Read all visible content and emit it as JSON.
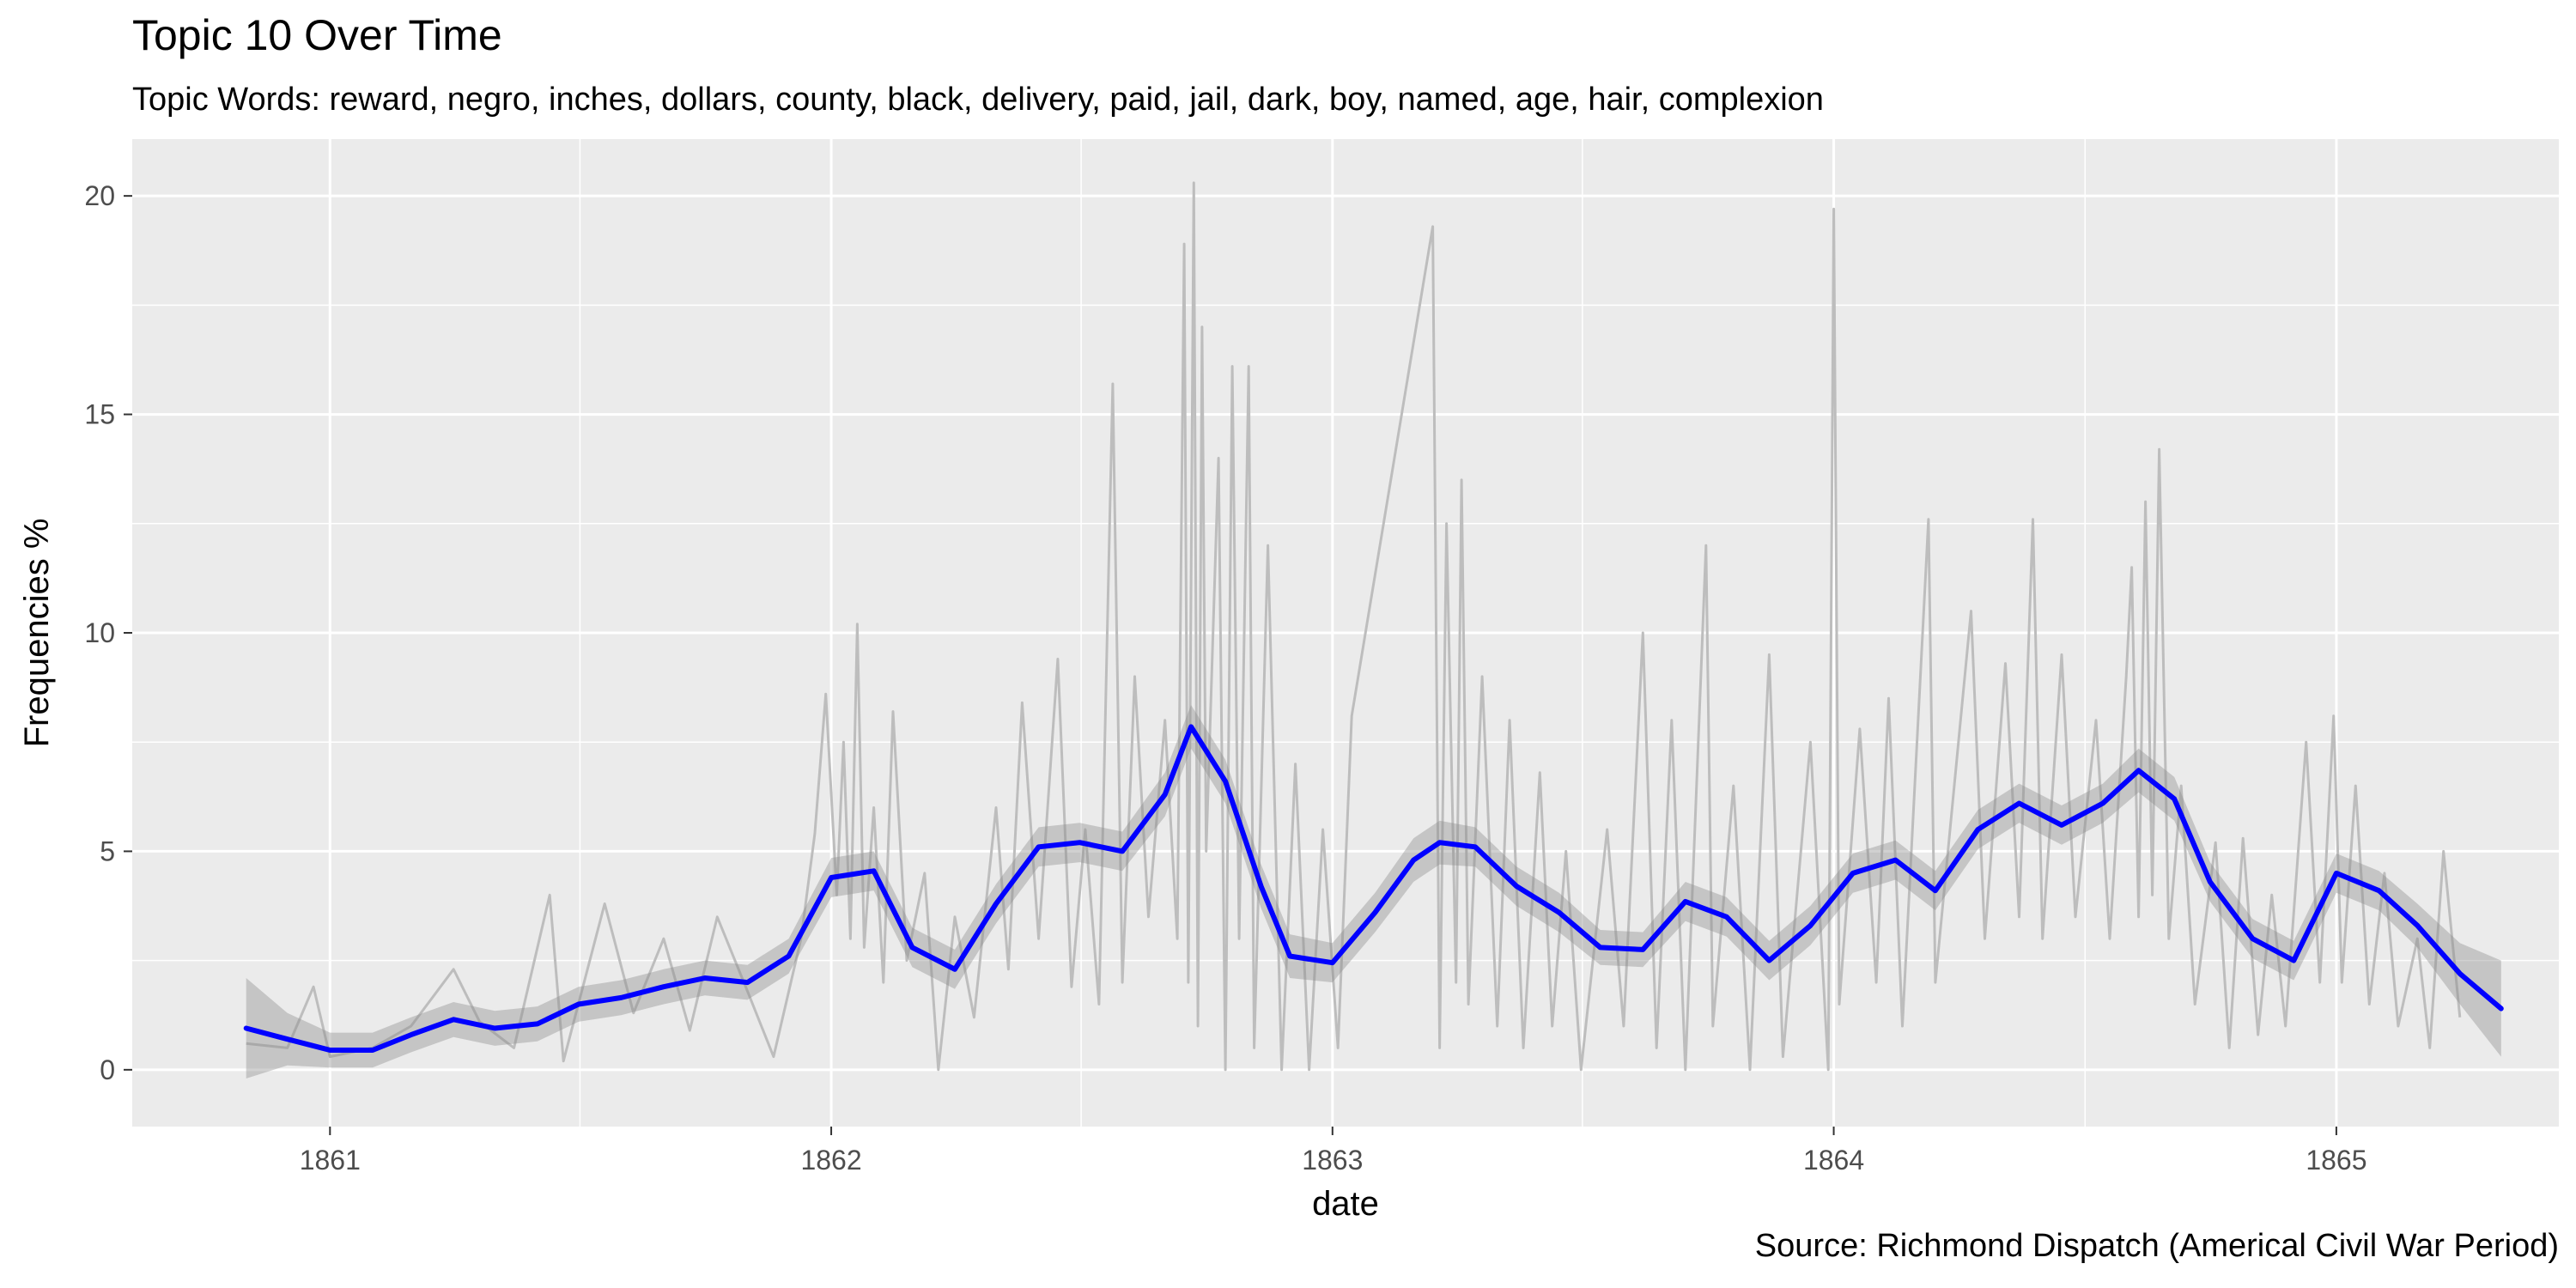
{
  "chart_data": {
    "type": "line",
    "title": "Topic 10 Over Time",
    "subtitle": "Topic Words: reward, negro, inches, dollars, county, black, delivery, paid, jail, dark, boy, named, age, hair, complexion",
    "caption": "Source: Richmond Dispatch (Americal Civil War Period)",
    "xlabel": "date",
    "ylabel": "Frequencies %",
    "x_ticks": [
      "1861",
      "1862",
      "1863",
      "1864",
      "1865"
    ],
    "y_ticks": [
      0,
      5,
      10,
      15,
      20
    ],
    "xlim": [
      "1860-08-10",
      "1865-06-12"
    ],
    "ylim": [
      -1.3,
      21.3
    ],
    "grid": true,
    "series": [
      {
        "role": "raw",
        "color": "#bdbdbd",
        "points": [
          [
            "1860-11-01",
            0.6
          ],
          [
            "1860-12-01",
            0.5
          ],
          [
            "1860-12-20",
            1.9
          ],
          [
            "1861-01-01",
            0.3
          ],
          [
            "1861-02-01",
            0.5
          ],
          [
            "1861-03-01",
            1.0
          ],
          [
            "1861-04-01",
            2.3
          ],
          [
            "1861-04-20",
            1.1
          ],
          [
            "1861-05-15",
            0.5
          ],
          [
            "1861-06-10",
            4.0
          ],
          [
            "1861-06-20",
            0.2
          ],
          [
            "1861-07-20",
            3.8
          ],
          [
            "1861-08-10",
            1.3
          ],
          [
            "1861-09-01",
            3.0
          ],
          [
            "1861-09-20",
            0.9
          ],
          [
            "1861-10-10",
            3.5
          ],
          [
            "1861-11-01",
            1.8
          ],
          [
            "1861-11-20",
            0.3
          ],
          [
            "1861-12-10",
            3.0
          ],
          [
            "1861-12-20",
            5.4
          ],
          [
            "1861-12-28",
            8.6
          ],
          [
            "1862-01-05",
            4.0
          ],
          [
            "1862-01-10",
            7.5
          ],
          [
            "1862-01-15",
            3.0
          ],
          [
            "1862-01-20",
            10.2
          ],
          [
            "1862-01-25",
            2.8
          ],
          [
            "1862-02-01",
            6.0
          ],
          [
            "1862-02-08",
            2.0
          ],
          [
            "1862-02-15",
            8.2
          ],
          [
            "1862-02-25",
            2.5
          ],
          [
            "1862-03-10",
            4.5
          ],
          [
            "1862-03-20",
            0.0
          ],
          [
            "1862-04-01",
            3.5
          ],
          [
            "1862-04-15",
            1.2
          ],
          [
            "1862-05-01",
            6.0
          ],
          [
            "1862-05-10",
            2.3
          ],
          [
            "1862-05-20",
            8.4
          ],
          [
            "1862-06-01",
            3.0
          ],
          [
            "1862-06-15",
            9.4
          ],
          [
            "1862-06-25",
            1.9
          ],
          [
            "1862-07-05",
            5.5
          ],
          [
            "1862-07-15",
            1.5
          ],
          [
            "1862-07-25",
            15.7
          ],
          [
            "1862-08-01",
            2.0
          ],
          [
            "1862-08-10",
            9.0
          ],
          [
            "1862-08-20",
            3.5
          ],
          [
            "1862-09-01",
            8.0
          ],
          [
            "1862-09-10",
            3.0
          ],
          [
            "1862-09-15",
            18.9
          ],
          [
            "1862-09-18",
            2.0
          ],
          [
            "1862-09-22",
            20.3
          ],
          [
            "1862-09-25",
            1.0
          ],
          [
            "1862-09-28",
            17.0
          ],
          [
            "1862-10-01",
            5.0
          ],
          [
            "1862-10-10",
            14.0
          ],
          [
            "1862-10-15",
            0.0
          ],
          [
            "1862-10-20",
            16.1
          ],
          [
            "1862-10-25",
            3.0
          ],
          [
            "1862-11-01",
            16.1
          ],
          [
            "1862-11-05",
            0.5
          ],
          [
            "1862-11-15",
            12.0
          ],
          [
            "1862-11-25",
            0.0
          ],
          [
            "1862-12-05",
            7.0
          ],
          [
            "1862-12-15",
            0.0
          ],
          [
            "1862-12-25",
            5.5
          ],
          [
            "1863-01-05",
            0.5
          ],
          [
            "1863-01-15",
            8.1
          ],
          [
            "1863-03-15",
            19.3
          ],
          [
            "1863-03-20",
            0.5
          ],
          [
            "1863-03-25",
            12.5
          ],
          [
            "1863-04-01",
            2.0
          ],
          [
            "1863-04-05",
            13.5
          ],
          [
            "1863-04-10",
            1.5
          ],
          [
            "1863-04-20",
            9.0
          ],
          [
            "1863-05-01",
            1.0
          ],
          [
            "1863-05-10",
            8.0
          ],
          [
            "1863-05-20",
            0.5
          ],
          [
            "1863-06-01",
            6.8
          ],
          [
            "1863-06-10",
            1.0
          ],
          [
            "1863-06-20",
            5.0
          ],
          [
            "1863-07-01",
            0.0
          ],
          [
            "1863-07-20",
            5.5
          ],
          [
            "1863-08-01",
            1.0
          ],
          [
            "1863-08-15",
            10.0
          ],
          [
            "1863-08-25",
            0.5
          ],
          [
            "1863-09-05",
            8.0
          ],
          [
            "1863-09-15",
            0.0
          ],
          [
            "1863-09-30",
            12.0
          ],
          [
            "1863-10-05",
            1.0
          ],
          [
            "1863-10-20",
            6.5
          ],
          [
            "1863-11-01",
            0.0
          ],
          [
            "1863-11-15",
            9.5
          ],
          [
            "1863-11-25",
            0.3
          ],
          [
            "1863-12-15",
            7.5
          ],
          [
            "1863-12-28",
            0.0
          ],
          [
            "1864-01-01",
            19.7
          ],
          [
            "1864-01-05",
            1.5
          ],
          [
            "1864-01-20",
            7.8
          ],
          [
            "1864-02-01",
            2.0
          ],
          [
            "1864-02-10",
            8.5
          ],
          [
            "1864-02-20",
            1.0
          ],
          [
            "1864-03-10",
            12.6
          ],
          [
            "1864-03-15",
            2.0
          ],
          [
            "1864-04-10",
            10.5
          ],
          [
            "1864-04-20",
            3.0
          ],
          [
            "1864-05-05",
            9.3
          ],
          [
            "1864-05-15",
            3.5
          ],
          [
            "1864-05-25",
            12.6
          ],
          [
            "1864-06-01",
            3.0
          ],
          [
            "1864-06-15",
            9.5
          ],
          [
            "1864-06-25",
            3.5
          ],
          [
            "1864-07-10",
            8.0
          ],
          [
            "1864-07-20",
            3.0
          ],
          [
            "1864-08-01",
            9.0
          ],
          [
            "1864-08-05",
            11.5
          ],
          [
            "1864-08-10",
            3.5
          ],
          [
            "1864-08-15",
            13.0
          ],
          [
            "1864-08-20",
            4.0
          ],
          [
            "1864-08-25",
            14.2
          ],
          [
            "1864-09-01",
            3.0
          ],
          [
            "1864-09-10",
            6.5
          ],
          [
            "1864-09-20",
            1.5
          ],
          [
            "1864-10-05",
            5.2
          ],
          [
            "1864-10-15",
            0.5
          ],
          [
            "1864-10-25",
            5.3
          ],
          [
            "1864-11-05",
            0.8
          ],
          [
            "1864-11-15",
            4.0
          ],
          [
            "1864-11-25",
            1.0
          ],
          [
            "1864-12-10",
            7.5
          ],
          [
            "1864-12-20",
            2.0
          ],
          [
            "1864-12-30",
            8.1
          ],
          [
            "1865-01-05",
            2.0
          ],
          [
            "1865-01-15",
            6.5
          ],
          [
            "1865-01-25",
            1.5
          ],
          [
            "1865-02-05",
            4.5
          ],
          [
            "1865-02-15",
            1.0
          ],
          [
            "1865-03-01",
            3.0
          ],
          [
            "1865-03-10",
            0.5
          ],
          [
            "1865-03-20",
            5.0
          ],
          [
            "1865-04-01",
            1.2
          ]
        ]
      },
      {
        "role": "smooth",
        "color": "#0000ff",
        "band_color": "#8c8c8c",
        "points": [
          [
            "1860-11-01",
            0.95,
            -0.2,
            2.1
          ],
          [
            "1860-12-01",
            0.7,
            0.1,
            1.3
          ],
          [
            "1861-01-01",
            0.45,
            0.05,
            0.85
          ],
          [
            "1861-02-01",
            0.45,
            0.05,
            0.85
          ],
          [
            "1861-03-01",
            0.8,
            0.4,
            1.2
          ],
          [
            "1861-04-01",
            1.15,
            0.75,
            1.55
          ],
          [
            "1861-05-01",
            0.95,
            0.55,
            1.35
          ],
          [
            "1861-06-01",
            1.05,
            0.65,
            1.45
          ],
          [
            "1861-07-01",
            1.5,
            1.1,
            1.9
          ],
          [
            "1861-08-01",
            1.65,
            1.25,
            2.05
          ],
          [
            "1861-09-01",
            1.9,
            1.5,
            2.3
          ],
          [
            "1861-10-01",
            2.1,
            1.7,
            2.5
          ],
          [
            "1861-11-01",
            2.0,
            1.6,
            2.4
          ],
          [
            "1861-12-01",
            2.6,
            2.2,
            3.0
          ],
          [
            "1862-01-01",
            4.4,
            3.95,
            4.85
          ],
          [
            "1862-02-01",
            4.55,
            4.1,
            5.0
          ],
          [
            "1862-03-01",
            2.8,
            2.35,
            3.25
          ],
          [
            "1862-04-01",
            2.3,
            1.85,
            2.75
          ],
          [
            "1862-05-01",
            3.8,
            3.35,
            4.25
          ],
          [
            "1862-06-01",
            5.1,
            4.65,
            5.55
          ],
          [
            "1862-07-01",
            5.2,
            4.75,
            5.65
          ],
          [
            "1862-08-01",
            5.0,
            4.55,
            5.45
          ],
          [
            "1862-09-01",
            6.3,
            5.8,
            6.8
          ],
          [
            "1862-09-20",
            7.85,
            7.35,
            8.35
          ],
          [
            "1862-10-15",
            6.6,
            6.1,
            7.1
          ],
          [
            "1862-11-10",
            4.2,
            3.7,
            4.7
          ],
          [
            "1862-12-01",
            2.6,
            2.1,
            3.1
          ],
          [
            "1863-01-01",
            2.45,
            2.0,
            2.9
          ],
          [
            "1863-02-01",
            3.6,
            3.15,
            4.05
          ],
          [
            "1863-03-01",
            4.8,
            4.3,
            5.3
          ],
          [
            "1863-03-20",
            5.2,
            4.7,
            5.7
          ],
          [
            "1863-04-15",
            5.1,
            4.65,
            5.55
          ],
          [
            "1863-05-15",
            4.2,
            3.75,
            4.65
          ],
          [
            "1863-06-15",
            3.6,
            3.15,
            4.05
          ],
          [
            "1863-07-15",
            2.8,
            2.4,
            3.2
          ],
          [
            "1863-08-15",
            2.75,
            2.35,
            3.15
          ],
          [
            "1863-09-15",
            3.85,
            3.4,
            4.3
          ],
          [
            "1863-10-15",
            3.5,
            3.05,
            3.95
          ],
          [
            "1863-11-15",
            2.5,
            2.05,
            2.95
          ],
          [
            "1863-12-15",
            3.3,
            2.85,
            3.75
          ],
          [
            "1864-01-15",
            4.5,
            4.05,
            4.95
          ],
          [
            "1864-02-15",
            4.8,
            4.35,
            5.25
          ],
          [
            "1864-03-15",
            4.1,
            3.65,
            4.55
          ],
          [
            "1864-04-15",
            5.5,
            5.05,
            5.95
          ],
          [
            "1864-05-15",
            6.1,
            5.65,
            6.55
          ],
          [
            "1864-06-15",
            5.6,
            5.15,
            6.05
          ],
          [
            "1864-07-15",
            6.1,
            5.65,
            6.55
          ],
          [
            "1864-08-10",
            6.85,
            6.35,
            7.35
          ],
          [
            "1864-09-05",
            6.2,
            5.7,
            6.7
          ],
          [
            "1864-10-01",
            4.3,
            3.85,
            4.75
          ],
          [
            "1864-11-01",
            3.0,
            2.55,
            3.45
          ],
          [
            "1864-12-01",
            2.5,
            2.05,
            2.95
          ],
          [
            "1865-01-01",
            4.5,
            4.05,
            4.95
          ],
          [
            "1865-02-01",
            4.1,
            3.65,
            4.55
          ],
          [
            "1865-03-01",
            3.3,
            2.8,
            3.8
          ],
          [
            "1865-04-01",
            2.2,
            1.5,
            2.9
          ],
          [
            "1865-05-01",
            1.4,
            0.3,
            2.5
          ]
        ]
      }
    ]
  }
}
